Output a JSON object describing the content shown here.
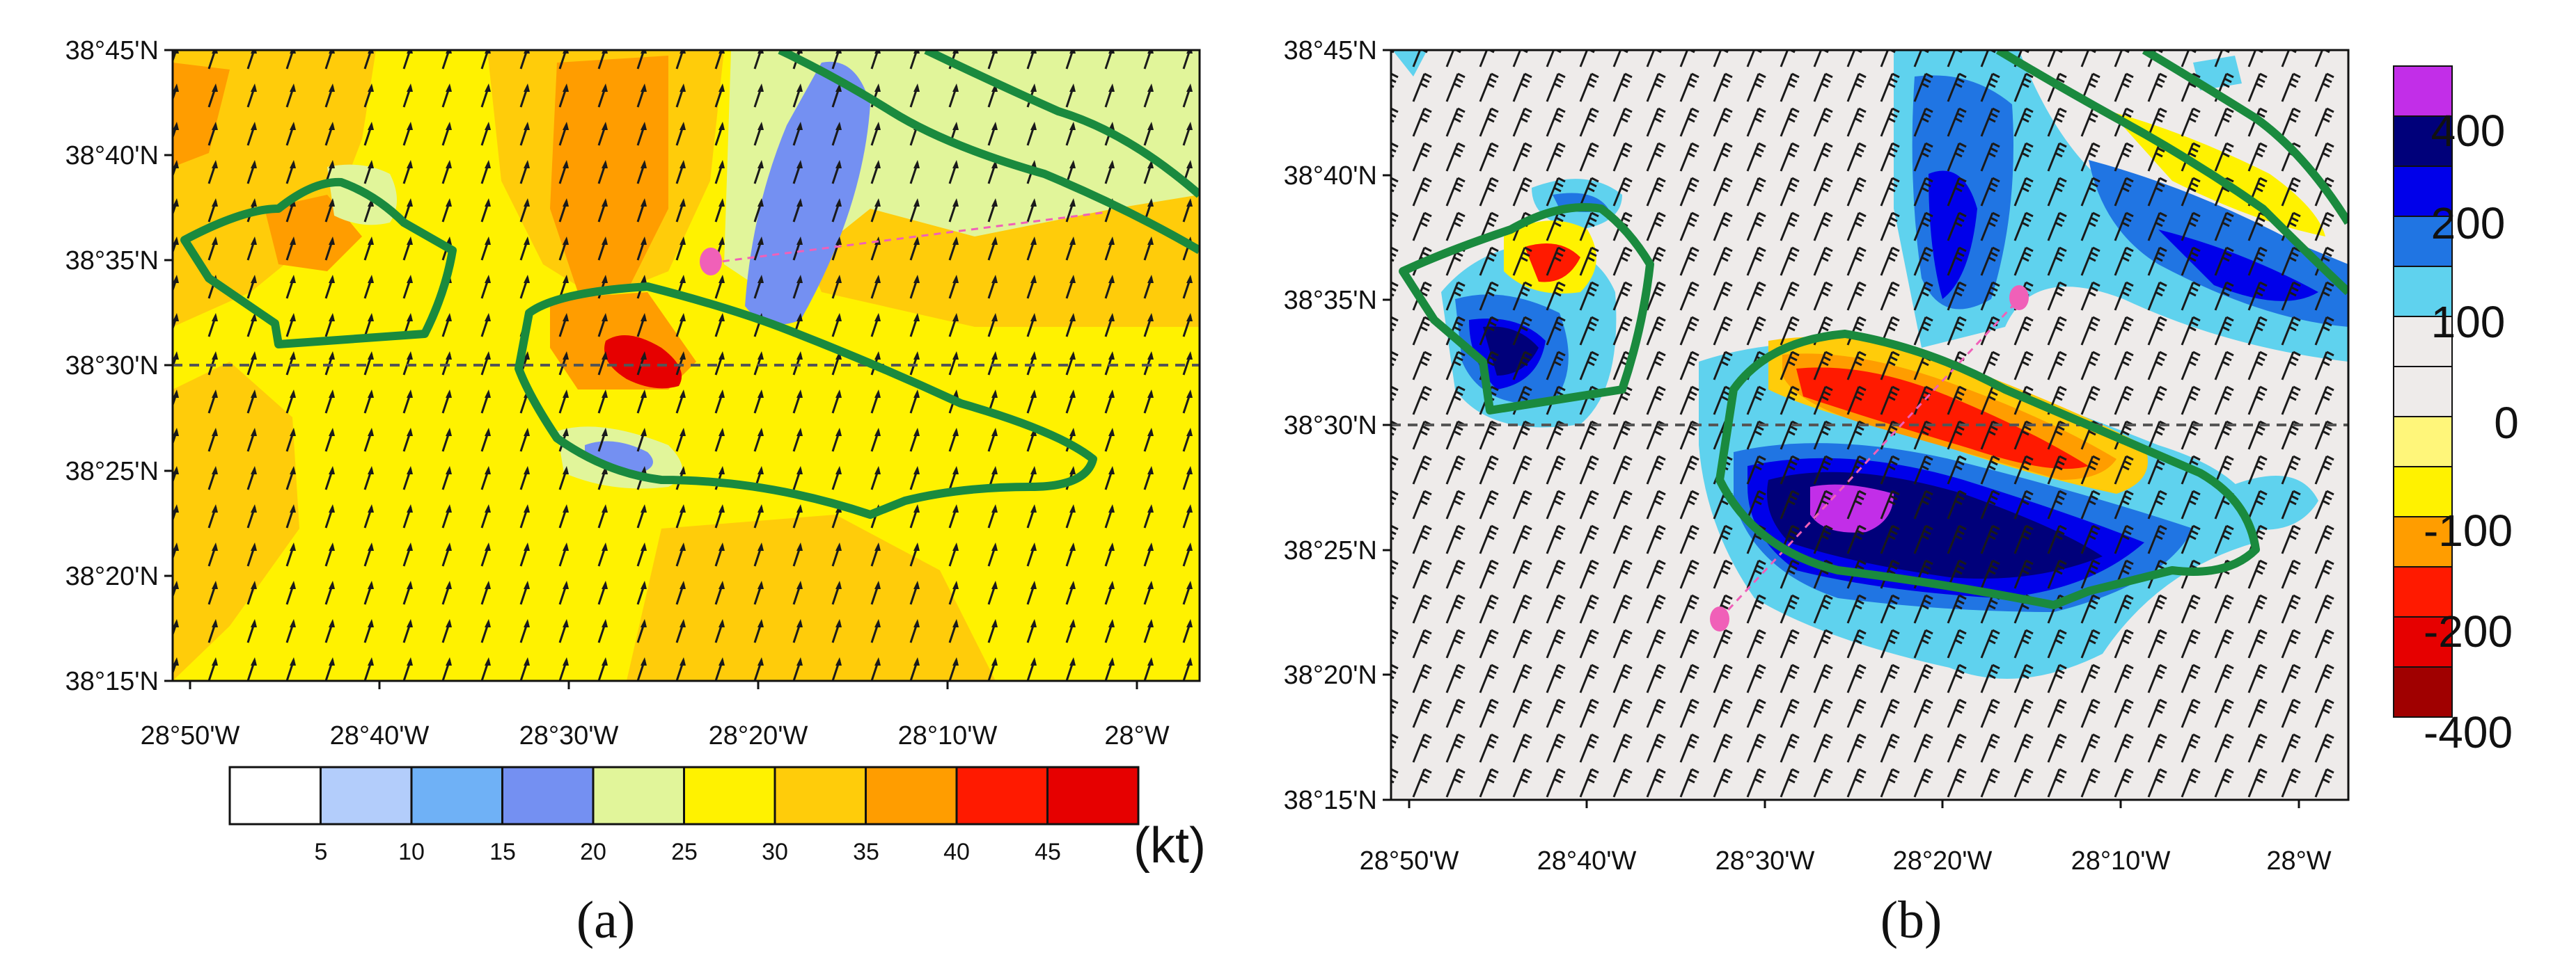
{
  "panel_a": {
    "label": "(a)",
    "lat_ticks": [
      "38°45'N",
      "38°40'N",
      "38°35'N",
      "38°30'N",
      "38°25'N",
      "38°20'N",
      "38°15'N"
    ],
    "lon_ticks": [
      "28°50'W",
      "28°40'W",
      "28°30'W",
      "28°20'W",
      "28°10'W",
      "28°W"
    ],
    "colorbar": {
      "unit": "(kt)",
      "labels": [
        "5",
        "10",
        "15",
        "20",
        "25",
        "30",
        "35",
        "40",
        "45"
      ],
      "colors": [
        "#ffffff",
        "#b3cdfb",
        "#6fb1f6",
        "#7490f2",
        "#e1f59a",
        "#fff200",
        "#ffcc0a",
        "#ff9d00",
        "#ff1a00",
        "#e60000"
      ]
    }
  },
  "panel_b": {
    "label": "(b)",
    "lat_ticks": [
      "38°45'N",
      "38°40'N",
      "38°35'N",
      "38°30'N",
      "38°25'N",
      "38°20'N",
      "38°15'N"
    ],
    "lon_ticks": [
      "28°50'W",
      "28°40'W",
      "28°30'W",
      "28°20'W",
      "28°10'W",
      "28°W"
    ],
    "colorbar": {
      "labels": [
        "400",
        "200",
        "100",
        "0",
        "-100",
        "-200",
        "-400"
      ],
      "colors": [
        "#c22ee8",
        "#00007a",
        "#0000ea",
        "#2075e3",
        "#5fd2ee",
        "#eeebea",
        "#eeebea",
        "#fff67a",
        "#fff200",
        "#ff9d00",
        "#ff1a00",
        "#e60000",
        "#a00000"
      ]
    }
  },
  "colors": {
    "contour_green": "#1a8a3e",
    "track_pink": "#f060b8",
    "dash_line": "#555555"
  }
}
